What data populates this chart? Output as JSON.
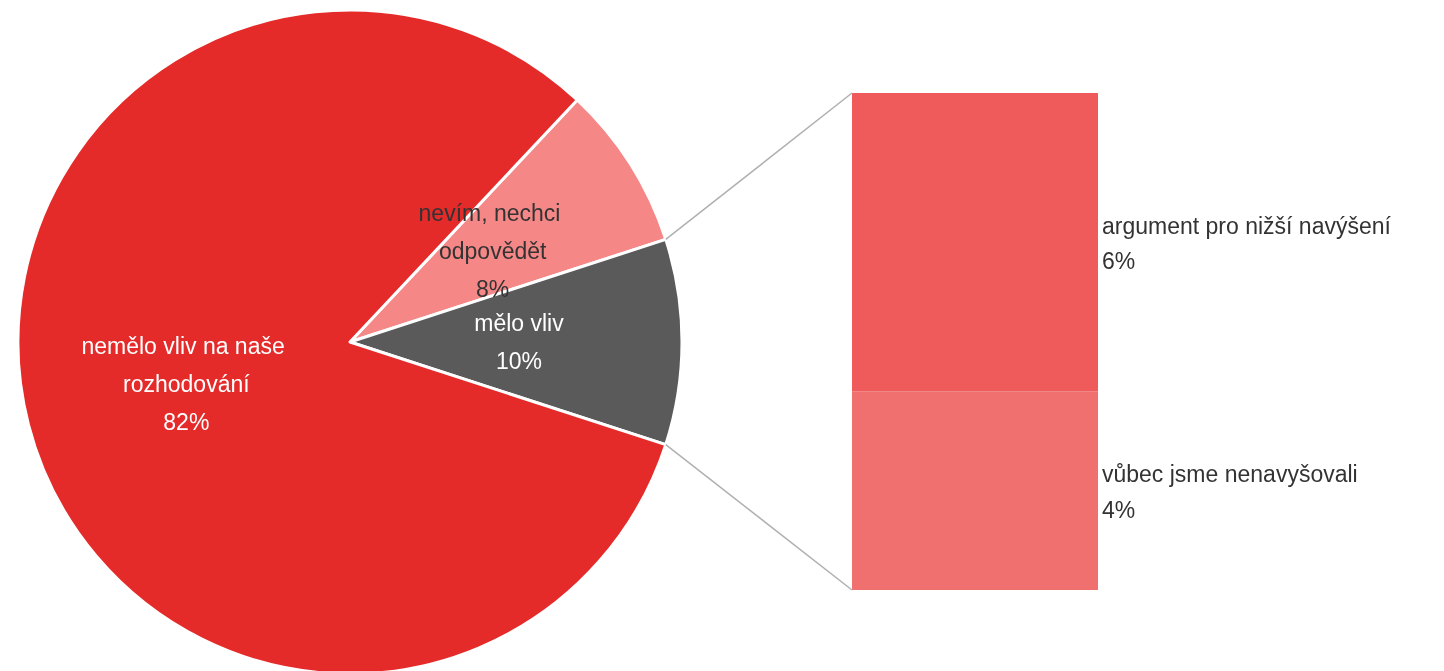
{
  "chart_data": [
    {
      "type": "pie",
      "categories": [
        "nevím, nechci odpovědět",
        "mělo vliv",
        "nemělo vliv na naše rozhodování"
      ],
      "values": [
        8,
        10,
        82
      ],
      "value_labels": [
        "8%",
        "10%",
        "82%"
      ],
      "colors": [
        "#f58887",
        "#5a5a5a",
        "#e52a2a"
      ],
      "legend": false
    },
    {
      "type": "bar",
      "stacked": true,
      "categories": [
        null
      ],
      "legend": false,
      "series": [
        {
          "name": "vůbec jsme nenavyšovali",
          "color": "#f07070",
          "values": [
            4
          ],
          "value_labels": [
            "4%"
          ]
        },
        {
          "name": "argument pro nižší navýšení",
          "color": "#ef5b5b",
          "values": [
            6
          ],
          "value_labels": [
            "6%"
          ]
        }
      ]
    }
  ]
}
